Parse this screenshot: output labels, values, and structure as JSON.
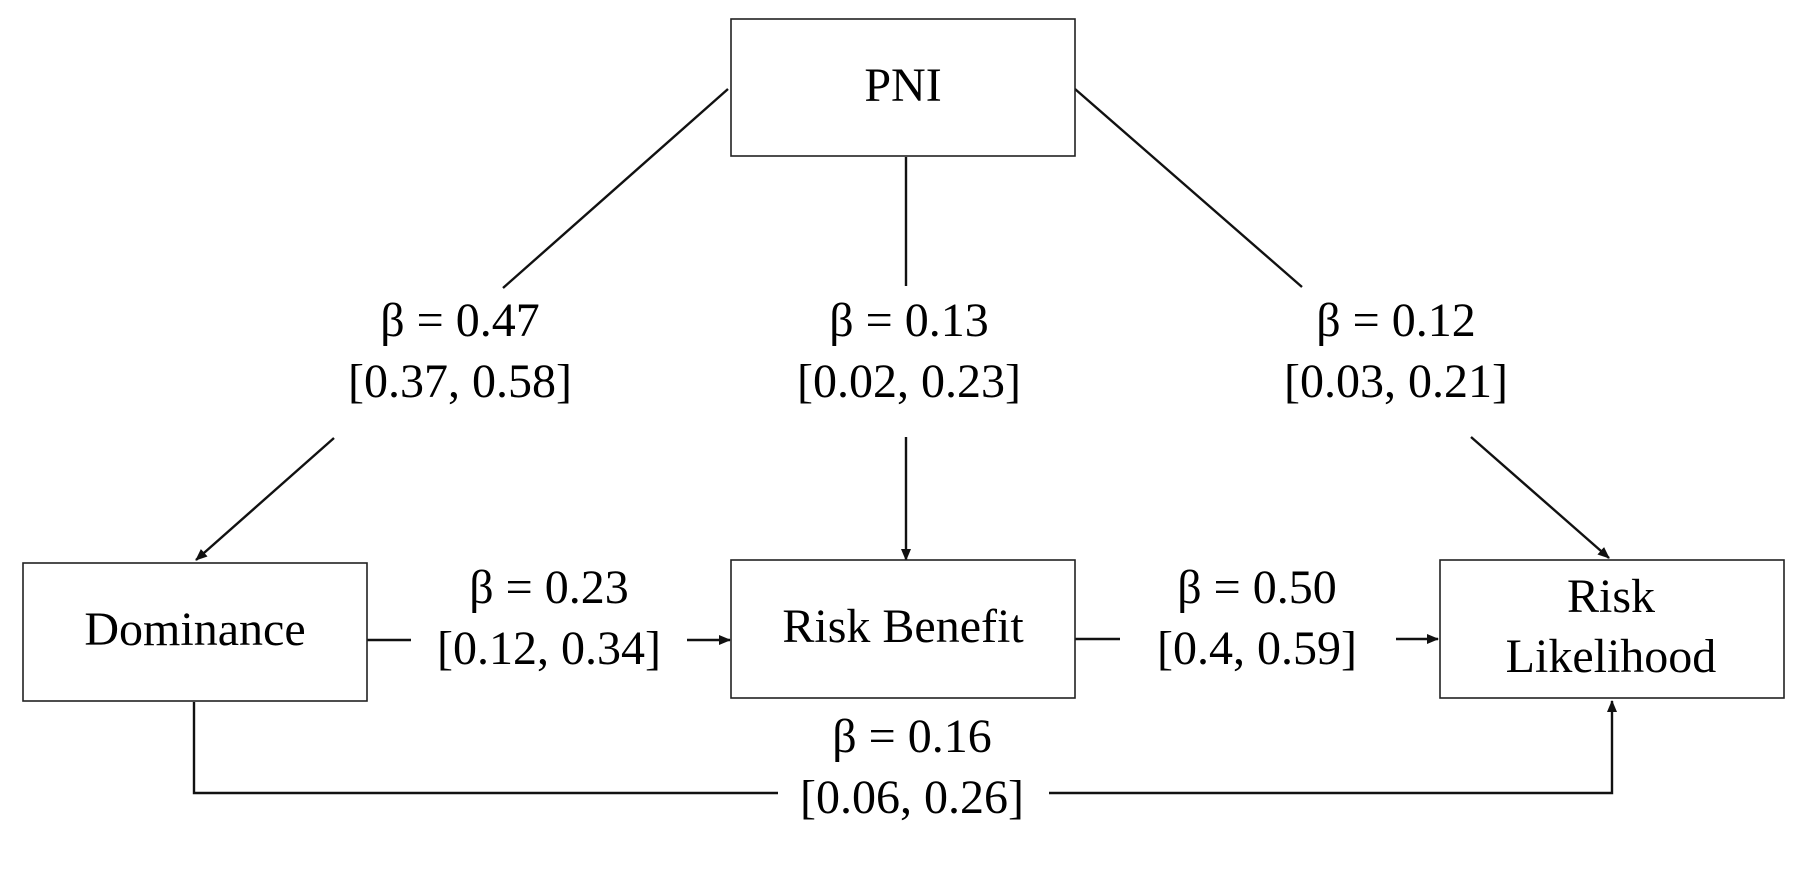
{
  "nodes": {
    "pni": "PNI",
    "dominance": "Dominance",
    "risk_benefit": "Risk Benefit",
    "risk_likelihood_line1": "Risk",
    "risk_likelihood_line2": "Likelihood"
  },
  "edges": {
    "pni_dominance": {
      "beta": "β = 0.47",
      "ci": "[0.37, 0.58]"
    },
    "pni_risk_benefit": {
      "beta": "β = 0.13",
      "ci": "[0.02, 0.23]"
    },
    "pni_risk_likelihood": {
      "beta": "β = 0.12",
      "ci": "[0.03, 0.21]"
    },
    "dominance_risk_benefit": {
      "beta": "β = 0.23",
      "ci": "[0.12, 0.34]"
    },
    "risk_benefit_risk_likelihood": {
      "beta": "β = 0.50",
      "ci": "[0.4, 0.59]"
    },
    "dominance_risk_likelihood": {
      "beta": "β = 0.16",
      "ci": "[0.06, 0.26]"
    }
  },
  "colors": {
    "line": "#111111",
    "box_border": "#222222",
    "background": "#ffffff"
  }
}
